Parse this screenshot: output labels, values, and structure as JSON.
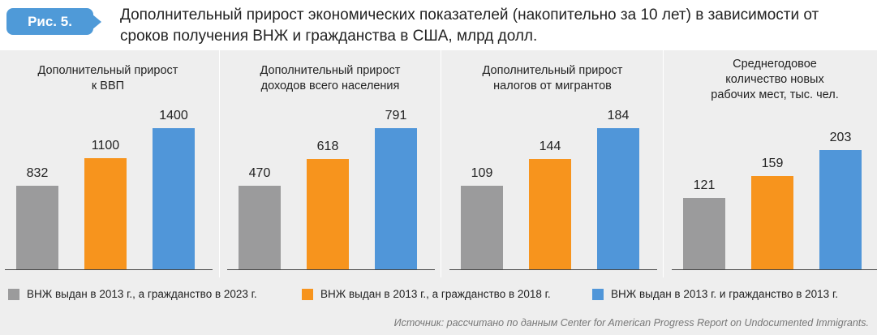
{
  "figure": {
    "badge": "Рис. 5.",
    "title_line1": "Дополнительный прирост экономических показателей (накопительно за 10 лет) в зависимости от",
    "title_line2": "сроков получения ВНЖ и гражданства в США, млрд  долл.",
    "badge_color": "#4f9ad8"
  },
  "legend": {
    "items": [
      {
        "label": "ВНЖ выдан в 2013 г., а гражданство в 2023 г.",
        "color": "#9b9b9c"
      },
      {
        "label": "ВНЖ выдан  в 2013 г., а гражданство в 2018 г.",
        "color": "#f7941d"
      },
      {
        "label": "ВНЖ выдан  в 2013 г. и гражданство в 2013 г.",
        "color": "#5096d9"
      }
    ]
  },
  "source": "Источник: рассчитано по данным Center for American Progress Report on Undocumented Immigrants.",
  "chart_data": [
    {
      "type": "bar",
      "title_line1": "Дополнительный прирост",
      "title_line2": "к ВВП",
      "title_line3": "",
      "categories": [
        "ВНЖ выдан в 2013 г., а гражданство в 2023 г.",
        "ВНЖ выдан  в 2013 г., а гражданство в 2018 г.",
        "ВНЖ выдан  в 2013 г. и гражданство в 2013 г."
      ],
      "values": [
        832,
        1100,
        1400
      ],
      "labels": [
        "832",
        "1100",
        "1400"
      ],
      "colors": [
        "#9b9b9c",
        "#f7941d",
        "#5096d9"
      ]
    },
    {
      "type": "bar",
      "title_line1": "Дополнительный прирост",
      "title_line2": "доходов всего населения",
      "title_line3": "",
      "categories": [
        "ВНЖ выдан в 2013 г., а гражданство в 2023 г.",
        "ВНЖ выдан  в 2013 г., а гражданство в 2018 г.",
        "ВНЖ выдан  в 2013 г. и гражданство в 2013 г."
      ],
      "values": [
        470,
        618,
        791
      ],
      "labels": [
        "470",
        "618",
        "791"
      ],
      "colors": [
        "#9b9b9c",
        "#f7941d",
        "#5096d9"
      ]
    },
    {
      "type": "bar",
      "title_line1": "Дополнительный прирост",
      "title_line2": "налогов от мигрантов",
      "title_line3": "",
      "categories": [
        "ВНЖ выдан в 2013 г., а гражданство в 2023 г.",
        "ВНЖ выдан  в 2013 г., а гражданство в 2018 г.",
        "ВНЖ выдан  в 2013 г. и гражданство в 2013 г."
      ],
      "values": [
        109,
        144,
        184
      ],
      "labels": [
        "109",
        "144",
        "184"
      ],
      "colors": [
        "#9b9b9c",
        "#f7941d",
        "#5096d9"
      ]
    },
    {
      "type": "bar",
      "title_line1": "Среднегодовое",
      "title_line2": "количество новых",
      "title_line3": "рабочих мест, тыс. чел.",
      "categories": [
        "ВНЖ выдан в 2013 г., а гражданство в 2023 г.",
        "ВНЖ выдан  в 2013 г., а гражданство в 2018 г.",
        "ВНЖ выдан  в 2013 г. и гражданство в 2013 г."
      ],
      "values": [
        121,
        159,
        203
      ],
      "labels": [
        "121",
        "159",
        "203"
      ],
      "colors": [
        "#9b9b9c",
        "#f7941d",
        "#5096d9"
      ]
    }
  ]
}
